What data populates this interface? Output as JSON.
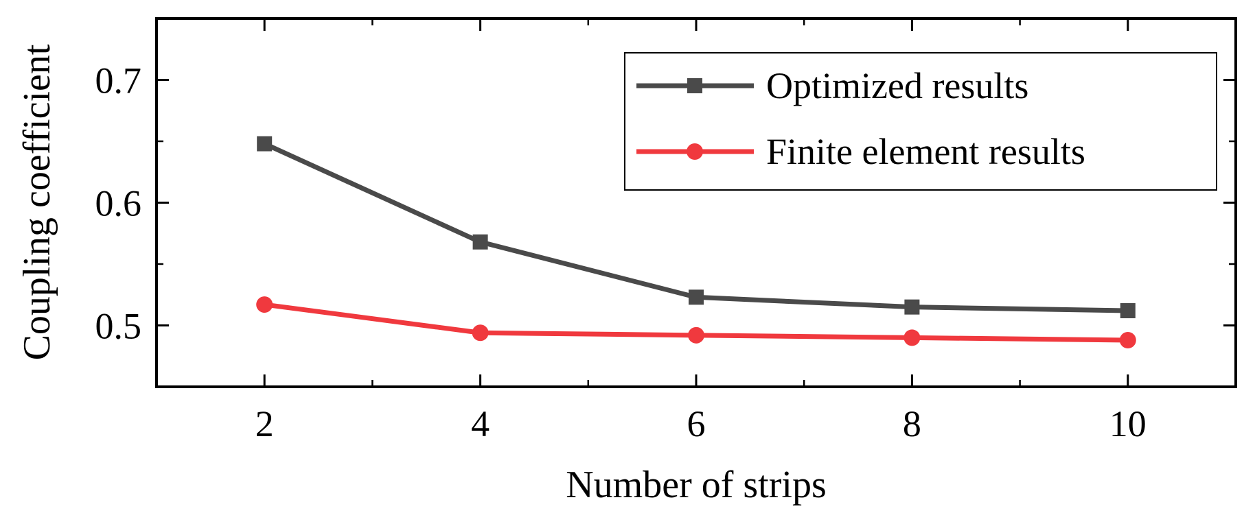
{
  "chart_data": {
    "type": "line",
    "xlabel": "Number of strips",
    "ylabel": "Coupling coefficient",
    "xlim": [
      1,
      11
    ],
    "ylim": [
      0.45,
      0.75
    ],
    "xticks": [
      2,
      4,
      6,
      8,
      10
    ],
    "xtick_labels": [
      "2",
      "4",
      "6",
      "8",
      "10"
    ],
    "yticks": [
      0.5,
      0.6,
      0.7
    ],
    "ytick_labels": [
      "0.5",
      "0.6",
      "0.7"
    ],
    "x": [
      2,
      4,
      6,
      8,
      10
    ],
    "legend_position": "top-right",
    "grid": false,
    "series": [
      {
        "name": "Optimized results",
        "values": [
          0.648,
          0.568,
          0.523,
          0.515,
          0.512
        ],
        "color": "#4a4a4a",
        "marker": "square"
      },
      {
        "name": "Finite element results",
        "values": [
          0.517,
          0.494,
          0.492,
          0.49,
          0.488
        ],
        "color": "#f0393e",
        "marker": "circle"
      }
    ]
  }
}
